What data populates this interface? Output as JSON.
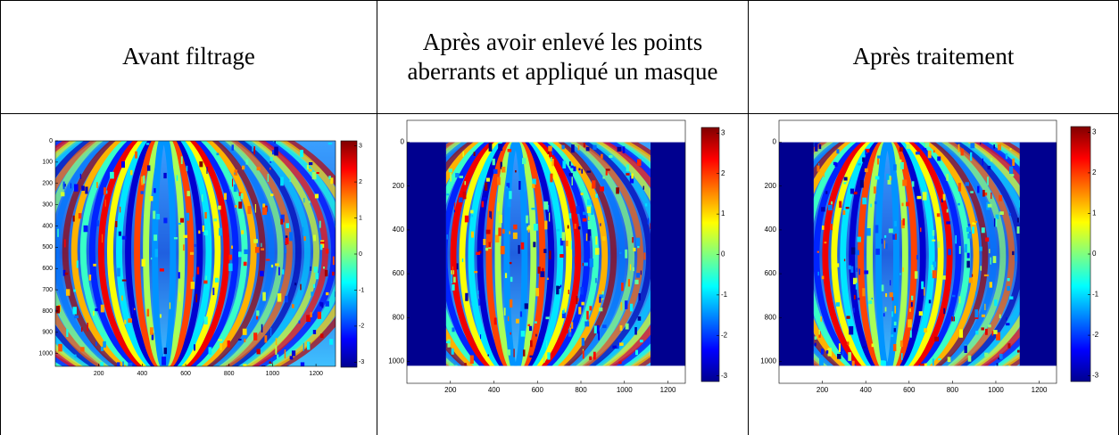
{
  "table": {
    "headers": [
      "Avant filtrage",
      "Après avoir enlevé les points aberrants et appliqué un masque",
      "Après traitement"
    ],
    "panels": [
      {
        "xlim": [
          0,
          1290
        ],
        "ylim": [
          0,
          1060
        ],
        "xticks": [
          200,
          400,
          600,
          800,
          1000,
          1200
        ],
        "yticks": [
          0,
          100,
          200,
          300,
          400,
          500,
          600,
          700,
          800,
          900,
          1000
        ],
        "clim": [
          -3.14,
          3.14
        ],
        "cticks": [
          3,
          2,
          1,
          0,
          -1,
          -2,
          -3
        ]
      },
      {
        "xlim": [
          0,
          1280
        ],
        "ylim": [
          -100,
          1100
        ],
        "xticks": [
          200,
          400,
          600,
          800,
          1000,
          1200
        ],
        "yticks": [
          0,
          200,
          400,
          600,
          800,
          1000
        ],
        "clim": [
          -3.14,
          3.14
        ],
        "cticks": [
          3,
          2,
          1,
          0,
          -1,
          -2,
          -3
        ]
      },
      {
        "xlim": [
          0,
          1280
        ],
        "ylim": [
          -100,
          1100
        ],
        "xticks": [
          200,
          400,
          600,
          800,
          1000,
          1200
        ],
        "yticks": [
          0,
          200,
          400,
          600,
          800,
          1000
        ],
        "clim": [
          -3.14,
          3.14
        ],
        "cticks": [
          3,
          2,
          1,
          0,
          -1,
          -2,
          -3
        ]
      }
    ]
  }
}
